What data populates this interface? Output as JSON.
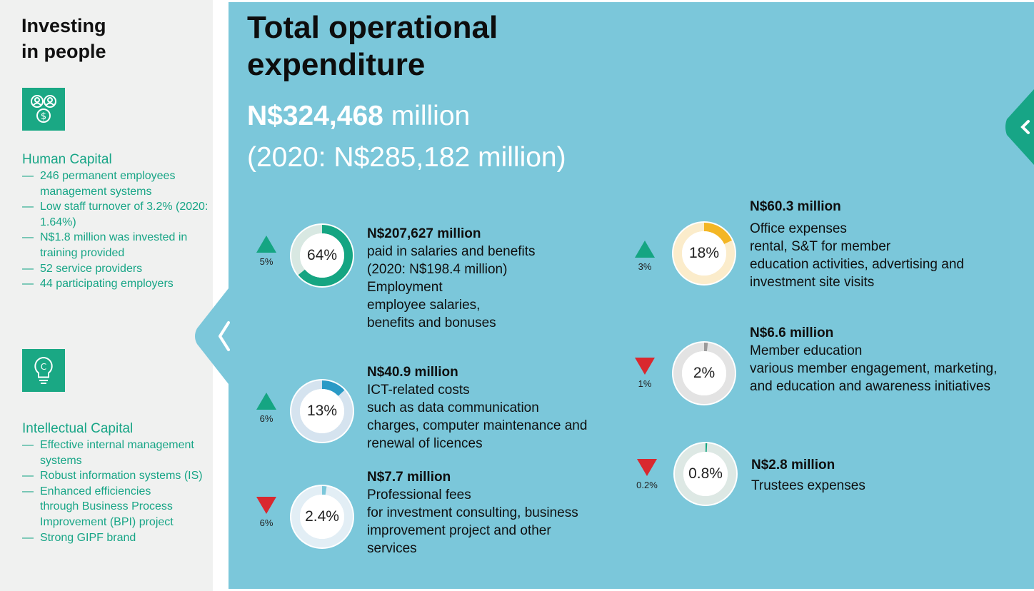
{
  "sidebar": {
    "title": "Investing\nin people",
    "human": {
      "icon": "people-money-icon",
      "title": "Human Capital",
      "items": [
        "246 permanent employees management systems",
        "Low staff turnover of 3.2% (2020: 1.64%)",
        "N$1.8 million was invested in training provided",
        "52 service providers",
        "44 participating employers"
      ]
    },
    "intellectual": {
      "icon": "lightbulb-copyright-icon",
      "title": "Intellectual Capital",
      "items": [
        "Effective internal management systems",
        "Robust information systems (IS)",
        "Enhanced efficiencies through Business Process Improvement (BPI) project",
        "Strong GIPF brand"
      ]
    }
  },
  "main": {
    "title_line1": "Total operational",
    "title_line2": "expenditure",
    "total_amount": "N$324,468",
    "total_unit": "million",
    "prior": "(2020: N$285,182 million)"
  },
  "colors": {
    "sidebar_bg": "#f0f1f0",
    "main_bg": "#7bc7da",
    "accent_green": "#1aa884",
    "up_green": "#15a582",
    "down_red": "#d9282f"
  },
  "items": [
    {
      "trend": "up",
      "change": "5%",
      "percent": 64,
      "percent_label": "64%",
      "ring_color": "#15a582",
      "track_color": "#d8e8e2",
      "amount": "N$207,627 million",
      "lines": [
        "paid in salaries and benefits",
        "(2020: N$198.4 million)"
      ],
      "category": "Employment",
      "details": [
        "employee salaries,",
        "benefits and bonuses"
      ]
    },
    {
      "trend": "up",
      "change": "6%",
      "percent": 13,
      "percent_label": "13%",
      "ring_color": "#2a9ac6",
      "track_color": "#d5e3ef",
      "amount": "N$40.9 million",
      "lines": [],
      "category": "ICT-related costs",
      "details": [
        "such as data communication",
        "charges, computer maintenance and",
        "renewal of licences"
      ]
    },
    {
      "trend": "down",
      "change": "6%",
      "percent": 2.4,
      "percent_label": "2.4%",
      "ring_color": "#7bc7da",
      "track_color": "#e2eef5",
      "amount": "N$7.7 million",
      "lines": [],
      "category": "Professional fees",
      "details": [
        "for investment consulting, business",
        "improvement project and other",
        "services"
      ]
    },
    {
      "trend": "up",
      "change": "3%",
      "percent": 18,
      "percent_label": "18%",
      "ring_color": "#f3b625",
      "track_color": "#fbeccb",
      "amount": "N$60.3 million",
      "lines": [],
      "category": "Office expenses",
      "details": [
        "rental, S&T for member",
        "education activities, advertising and",
        "investment site visits"
      ]
    },
    {
      "trend": "down",
      "change": "1%",
      "percent": 2,
      "percent_label": "2%",
      "ring_color": "#9a9a9a",
      "track_color": "#e3e3e3",
      "amount": "N$6.6 million",
      "lines": [],
      "category": "Member education",
      "details": [
        "various member engagement, marketing,",
        "and education and awareness initiatives"
      ]
    },
    {
      "trend": "down",
      "change": "0.2%",
      "percent": 0.8,
      "percent_label": "0.8%",
      "ring_color": "#15a582",
      "track_color": "#dde8e4",
      "amount": "N$2.8 million",
      "lines": [],
      "category": "Trustees expenses",
      "details": []
    }
  ]
}
